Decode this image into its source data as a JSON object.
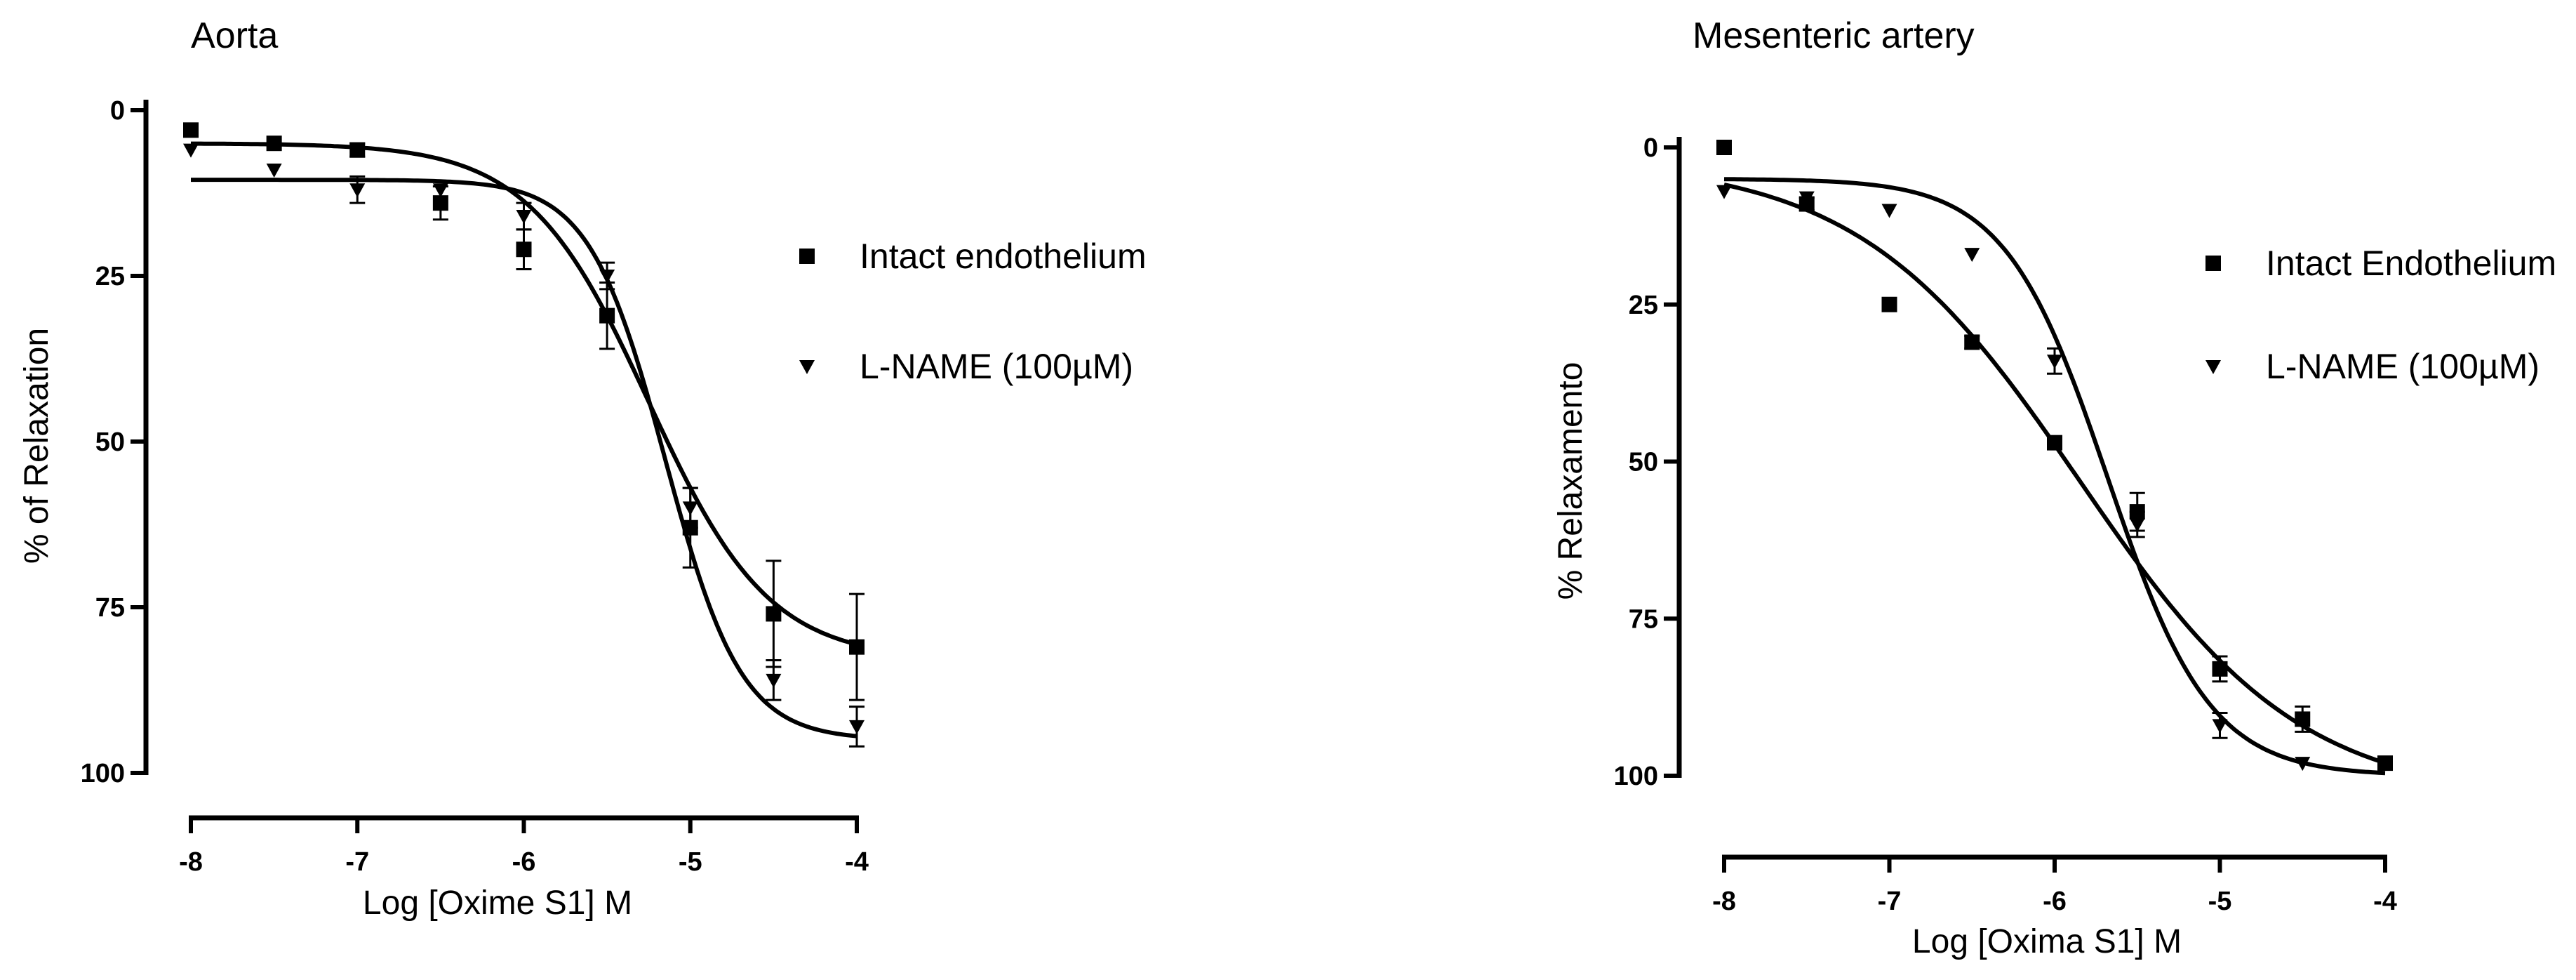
{
  "chart_data": [
    {
      "type": "scatter",
      "title": "Aorta",
      "xlabel": "Log [Oxime S1] M",
      "ylabel": "% of Relaxation",
      "xlim": [
        -8,
        -4
      ],
      "ylim": [
        0,
        100
      ],
      "y_reversed": true,
      "xticks": [
        "-8",
        "-7",
        "-6",
        "-5",
        "-4"
      ],
      "yticks": [
        "0",
        "25",
        "50",
        "75",
        "100"
      ],
      "legend_position": "right",
      "series": [
        {
          "name": "Intact endothelium",
          "marker": "square",
          "x": [
            -8,
            -7.5,
            -7,
            -6.5,
            -6,
            -5.5,
            -5,
            -4.5,
            -4
          ],
          "y": [
            3,
            5,
            6,
            14,
            21,
            31,
            63,
            76,
            81
          ],
          "error": [
            0,
            0,
            1,
            2.5,
            3,
            5,
            6,
            8,
            8
          ],
          "fit": {
            "bottom": 5,
            "top": 83,
            "log_ec50": -5.25,
            "hill_slope": 1.2
          }
        },
        {
          "name": "L-NAME (100µM)",
          "marker": "triangle-down",
          "x": [
            -8,
            -7.5,
            -7,
            -6.5,
            -6,
            -5.5,
            -5,
            -4.5,
            -4
          ],
          "y": [
            6,
            9,
            12,
            12,
            16,
            25,
            60,
            86,
            93
          ],
          "error": [
            0,
            0,
            2,
            0,
            2,
            2,
            3,
            3,
            3
          ],
          "fit": {
            "bottom": 10.5,
            "top": 95,
            "log_ec50": -5.15,
            "hill_slope": 1.9
          }
        }
      ]
    },
    {
      "type": "scatter",
      "title": "Mesenteric artery",
      "xlabel": "Log [Oxima S1] M",
      "ylabel": "% Relaxamento",
      "xlim": [
        -8,
        -4
      ],
      "ylim": [
        0,
        100
      ],
      "y_reversed": true,
      "xticks": [
        "-8",
        "-7",
        "-6",
        "-5",
        "-4"
      ],
      "yticks": [
        "0",
        "25",
        "50",
        "75",
        "100"
      ],
      "legend_position": "right",
      "series": [
        {
          "name": "Intact Endothelium",
          "marker": "square",
          "x": [
            -8,
            -7.5,
            -7,
            -6.5,
            -6,
            -5.5,
            -5,
            -4.5,
            -4
          ],
          "y": [
            0,
            9,
            25,
            31,
            47,
            58,
            83,
            91,
            98
          ],
          "error": [
            0,
            1,
            1,
            1,
            1,
            3,
            2,
            2,
            1
          ],
          "fit": {
            "bottom": 2,
            "top": 104,
            "log_ec50": -5.85,
            "hill_slope": 0.65
          }
        },
        {
          "name": "L-NAME (100µM)",
          "marker": "triangle-down",
          "x": [
            -8,
            -7.5,
            -7,
            -6.5,
            -6,
            -5.5,
            -5,
            -4.5,
            -4
          ],
          "y": [
            7,
            8,
            10,
            17,
            34,
            60,
            92,
            98,
            98
          ],
          "error": [
            0,
            0,
            0,
            0,
            2,
            2,
            2,
            0,
            0
          ],
          "fit": {
            "bottom": 5,
            "top": 100,
            "log_ec50": -5.68,
            "hill_slope": 1.4
          }
        }
      ]
    }
  ]
}
